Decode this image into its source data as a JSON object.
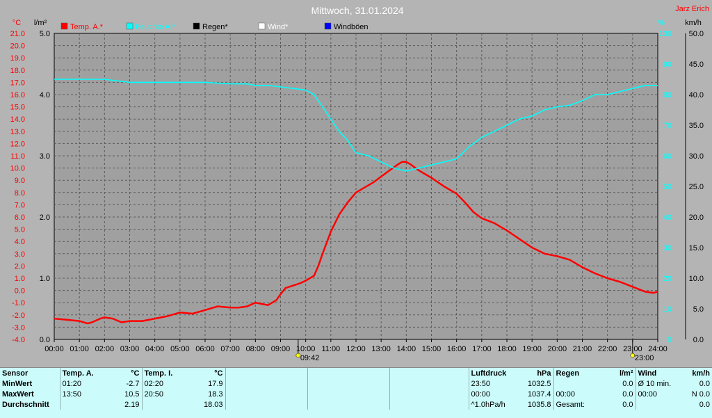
{
  "header": {
    "title": "Mittwoch, 31.01.2024",
    "author": "Jarz Erich"
  },
  "colors": {
    "temperature": "#ff0000",
    "humidity": "#00ffff",
    "rain": "#000000",
    "wind": "#ffffff",
    "gust": "#0000ff",
    "background": "#b4b4b4",
    "statsBackground": "#cbfbfb"
  },
  "chart_data": {
    "type": "line",
    "axes": {
      "temp": {
        "unit": "°C",
        "min": -4,
        "max": 21,
        "step": 1
      },
      "rain": {
        "unit": "l/m²",
        "min": 0,
        "max": 5,
        "step": 1
      },
      "humidity": {
        "unit": "%",
        "min": 0,
        "max": 100,
        "step": 10
      },
      "wind": {
        "unit": "km/h",
        "min": 0,
        "max": 50,
        "step": 5
      }
    },
    "x_labels": [
      "00:00",
      "01:00",
      "02:00",
      "03:00",
      "04:00",
      "05:00",
      "06:00",
      "07:00",
      "08:00",
      "09:00",
      "10:00",
      "11:00",
      "12:00",
      "13:00",
      "14:00",
      "15:00",
      "16:00",
      "17:00",
      "18:00",
      "19:00",
      "20:00",
      "21:00",
      "22:00",
      "23:00",
      "24:00"
    ],
    "x_unit": "hour",
    "grid": true,
    "sun_markers": [
      {
        "hour": 9.7,
        "label": "09:42"
      },
      {
        "hour": 23,
        "label": "23:00"
      }
    ],
    "series": [
      {
        "name": "Temp. A.*",
        "axis": "temp",
        "color": "#ff0000",
        "x": [
          0,
          0.5,
          1,
          1.33,
          1.5,
          1.83,
          2,
          2.33,
          2.67,
          3,
          3.5,
          4,
          4.5,
          5,
          5.5,
          6,
          6.5,
          7,
          7.33,
          7.67,
          8,
          8.5,
          8.83,
          9,
          9.2,
          9.5,
          9.8,
          10,
          10.33,
          10.5,
          10.67,
          11,
          11.33,
          11.67,
          12,
          12.33,
          12.67,
          13,
          13.33,
          13.67,
          13.83,
          14,
          14.17,
          14.5,
          15,
          15.5,
          16,
          16.33,
          16.67,
          17,
          17.5,
          18,
          18.5,
          19,
          19.5,
          20,
          20.5,
          21,
          21.5,
          22,
          22.5,
          23,
          23.5,
          23.83,
          24
        ],
        "values": [
          -2.3,
          -2.4,
          -2.5,
          -2.7,
          -2.6,
          -2.3,
          -2.2,
          -2.3,
          -2.6,
          -2.5,
          -2.5,
          -2.3,
          -2.1,
          -1.8,
          -1.9,
          -1.6,
          -1.3,
          -1.4,
          -1.4,
          -1.3,
          -1.0,
          -1.2,
          -0.8,
          -0.3,
          0.2,
          0.4,
          0.6,
          0.8,
          1.2,
          2.0,
          3.0,
          4.8,
          6.2,
          7.2,
          8.0,
          8.4,
          8.8,
          9.3,
          9.8,
          10.3,
          10.5,
          10.5,
          10.3,
          9.8,
          9.2,
          8.5,
          7.9,
          7.2,
          6.4,
          5.9,
          5.5,
          4.9,
          4.2,
          3.5,
          3.0,
          2.8,
          2.5,
          1.9,
          1.4,
          1.0,
          0.7,
          0.3,
          -0.1,
          -0.2,
          -0.1
        ]
      },
      {
        "name": "Feuchte A.*",
        "axis": "humidity",
        "color": "#00ffff",
        "x": [
          0,
          1,
          2,
          3,
          4,
          5,
          6,
          7,
          7.67,
          8,
          8.5,
          9,
          9.5,
          10,
          10.33,
          10.67,
          11,
          11.33,
          11.67,
          12,
          12.5,
          13,
          13.5,
          14,
          14.5,
          15,
          15.5,
          16,
          16.5,
          17,
          17.5,
          18,
          18.5,
          19,
          19.5,
          20,
          20.5,
          21,
          21.5,
          22,
          22.5,
          23,
          23.5,
          24
        ],
        "values": [
          85,
          85,
          85,
          84,
          84,
          84,
          84,
          83.5,
          83.5,
          83,
          83,
          82.5,
          82,
          81.5,
          80,
          76,
          72,
          68,
          65,
          61,
          60,
          58,
          56,
          55,
          56,
          57,
          58,
          59,
          63,
          66,
          68,
          70,
          72,
          73,
          75,
          76,
          76.5,
          78,
          80,
          80,
          81,
          82,
          83,
          83
        ]
      }
    ],
    "legend": [
      {
        "label": "Temp. A.*",
        "color": "#ff0000"
      },
      {
        "label": "Feuchte A.*",
        "color": "#00ffff"
      },
      {
        "label": "Regen*",
        "color": "#000000"
      },
      {
        "label": "Wind*",
        "color": "#ffffff"
      },
      {
        "label": "Windböen",
        "color": "#0000ff"
      }
    ]
  },
  "stats": {
    "sensor": {
      "header": "Sensor",
      "rows": [
        "MinWert",
        "MaxWert",
        "Durchschnitt"
      ]
    },
    "temp_a": {
      "header": "Temp. A.",
      "unit": "°C",
      "times": [
        "01:20",
        "13:50",
        ""
      ],
      "values": [
        "-2.7",
        "10.5",
        "2.19"
      ]
    },
    "temp_i": {
      "header": "Temp. I.",
      "unit": "°C",
      "times": [
        "02:20",
        "20:50",
        ""
      ],
      "values": [
        "17.9",
        "18.3",
        "18.03"
      ]
    },
    "pressure": {
      "header": "Luftdruck",
      "unit": "hPa",
      "times": [
        "23:50",
        "00:00",
        "^1.0hPa/h"
      ],
      "values": [
        "1032.5",
        "1037.4",
        "1035.8"
      ]
    },
    "rain": {
      "header": "Regen",
      "unit": "l/m²",
      "times": [
        "",
        "00:00",
        "Gesamt:"
      ],
      "values": [
        "0.0",
        "0.0",
        "0.0"
      ]
    },
    "wind": {
      "header": "Wind",
      "unit": "km/h",
      "times": [
        "Ø 10 min.",
        "00:00",
        ""
      ],
      "values": [
        "0.0",
        "N 0.0",
        "0.0"
      ]
    }
  }
}
